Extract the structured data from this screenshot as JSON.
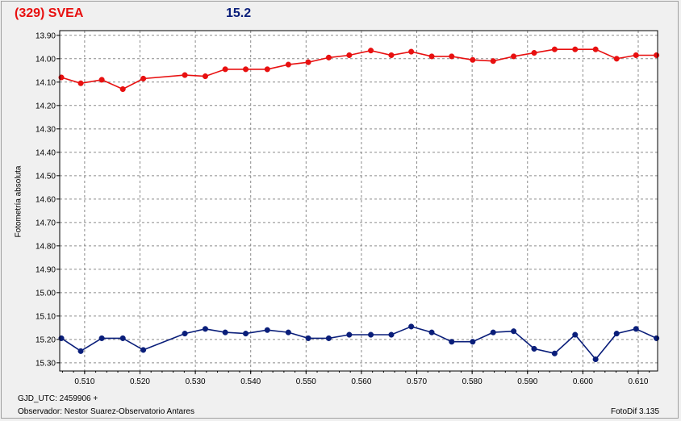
{
  "header": {
    "object_label": "(329) SVEA",
    "object_color": "#e81010",
    "magnitude_label": "15.2",
    "magnitude_color": "#0a1e7a"
  },
  "footer": {
    "gjd": "GJD_UTC: 2459906 +",
    "observer": "Observador: Nestor Suarez-Observatorio Antares",
    "software": "FotoDif 3.135"
  },
  "chart_data": {
    "type": "line",
    "ylabel": "Fotometría absoluta",
    "xlabel": "",
    "xlim": [
      0.5055,
      0.6135
    ],
    "ylim": [
      13.88,
      15.335
    ],
    "y_inverted": true,
    "grid": true,
    "grid_style": "dashed",
    "x_ticks": [
      "0.510",
      "0.520",
      "0.530",
      "0.540",
      "0.550",
      "0.560",
      "0.570",
      "0.580",
      "0.590",
      "0.600",
      "0.610"
    ],
    "y_ticks": [
      "13.90",
      "14.00",
      "14.10",
      "14.20",
      "14.30",
      "14.40",
      "14.50",
      "14.60",
      "14.70",
      "14.80",
      "14.90",
      "15.00",
      "15.10",
      "15.20",
      "15.30"
    ],
    "series": [
      {
        "color": "#e81010",
        "x": [
          0.5058,
          0.5093,
          0.5131,
          0.5169,
          0.5206,
          0.5281,
          0.5318,
          0.5354,
          0.5391,
          0.543,
          0.5468,
          0.5504,
          0.5541,
          0.5578,
          0.5617,
          0.5654,
          0.569,
          0.5727,
          0.5763,
          0.5801,
          0.5838,
          0.5875,
          0.5912,
          0.5949,
          0.5986,
          0.6023,
          0.6061,
          0.6096,
          0.6133
        ],
        "values": [
          14.08,
          14.105,
          14.09,
          14.13,
          14.085,
          14.07,
          14.075,
          14.045,
          14.045,
          14.045,
          14.025,
          14.015,
          13.995,
          13.985,
          13.965,
          13.985,
          13.97,
          13.99,
          13.99,
          14.005,
          14.01,
          13.99,
          13.975,
          13.96,
          13.96,
          13.96,
          14.0,
          13.985,
          13.985
        ]
      },
      {
        "color": "#0a1e7a",
        "x": [
          0.5058,
          0.5093,
          0.5131,
          0.5169,
          0.5206,
          0.5281,
          0.5318,
          0.5354,
          0.5391,
          0.543,
          0.5468,
          0.5504,
          0.5541,
          0.5578,
          0.5617,
          0.5654,
          0.569,
          0.5727,
          0.5763,
          0.5801,
          0.5838,
          0.5875,
          0.5912,
          0.5949,
          0.5986,
          0.6023,
          0.6061,
          0.6096,
          0.6133
        ],
        "values": [
          15.195,
          15.25,
          15.195,
          15.195,
          15.245,
          15.175,
          15.155,
          15.17,
          15.175,
          15.16,
          15.17,
          15.195,
          15.195,
          15.18,
          15.18,
          15.18,
          15.145,
          15.17,
          15.21,
          15.21,
          15.17,
          15.165,
          15.24,
          15.26,
          15.18,
          15.285,
          15.175,
          15.155,
          15.195
        ]
      }
    ]
  }
}
